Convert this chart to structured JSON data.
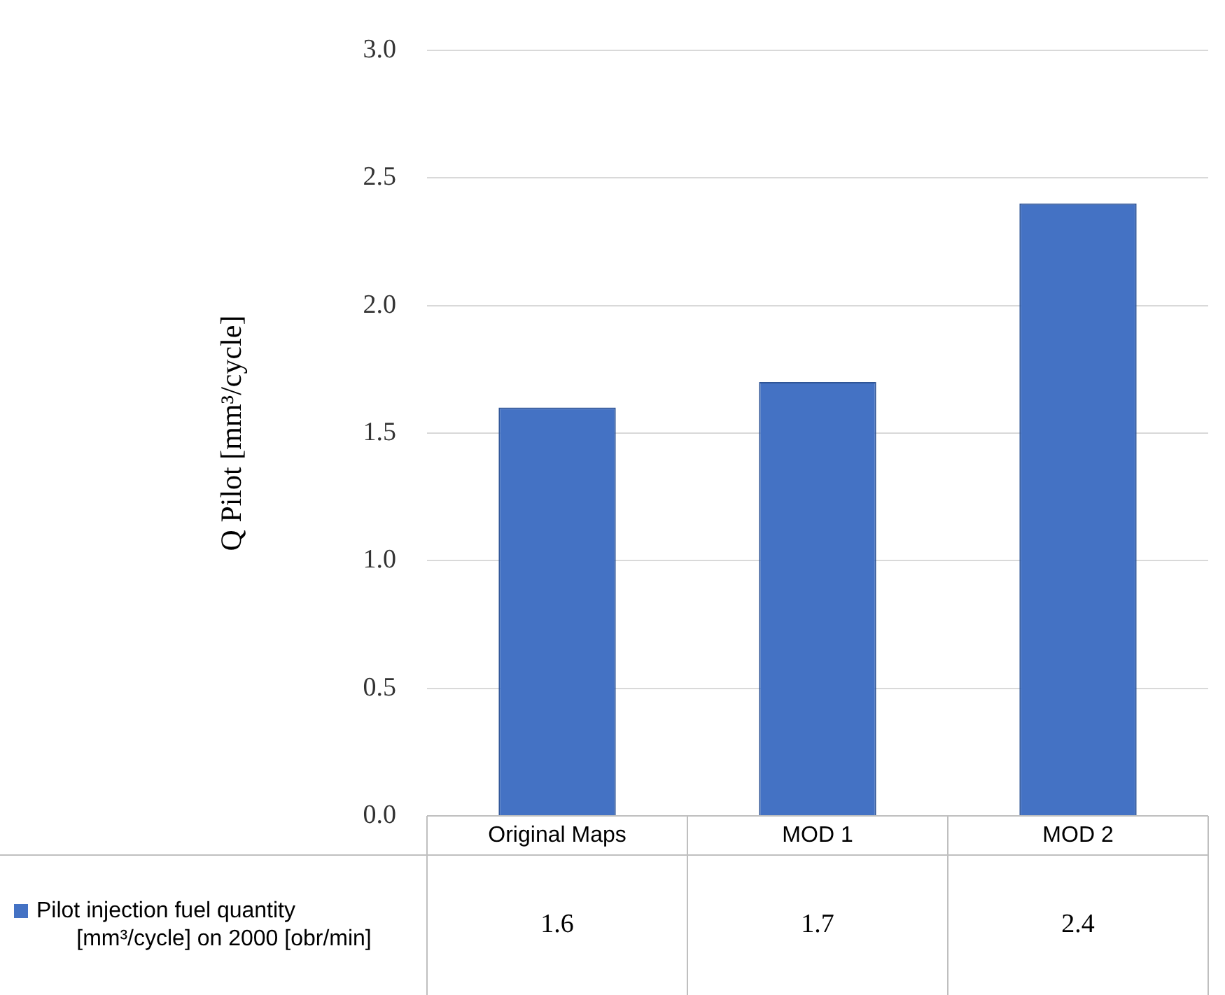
{
  "chart_data": {
    "type": "bar",
    "ylabel": "Q Pilot [mm³/cycle]",
    "categories": [
      "Original Maps",
      "MOD 1",
      "MOD 2"
    ],
    "series": [
      {
        "name": "Pilot injection fuel quantity [mm³/cycle] on 2000 [obr/min]",
        "color": "#4472c4",
        "values": [
          1.6,
          1.7,
          2.4
        ]
      }
    ],
    "ylim": [
      0,
      3
    ],
    "yticks": [
      {
        "value": 0,
        "label": "0.0"
      },
      {
        "value": 0.5,
        "label": "0.5"
      },
      {
        "value": 1,
        "label": "1.0"
      },
      {
        "value": 1.5,
        "label": "1.5"
      },
      {
        "value": 2,
        "label": "2.0"
      },
      {
        "value": 2.5,
        "label": "2.5"
      },
      {
        "value": 3,
        "label": "3.0"
      }
    ],
    "grid": "y",
    "legend": "bottom",
    "data_labels": true
  }
}
